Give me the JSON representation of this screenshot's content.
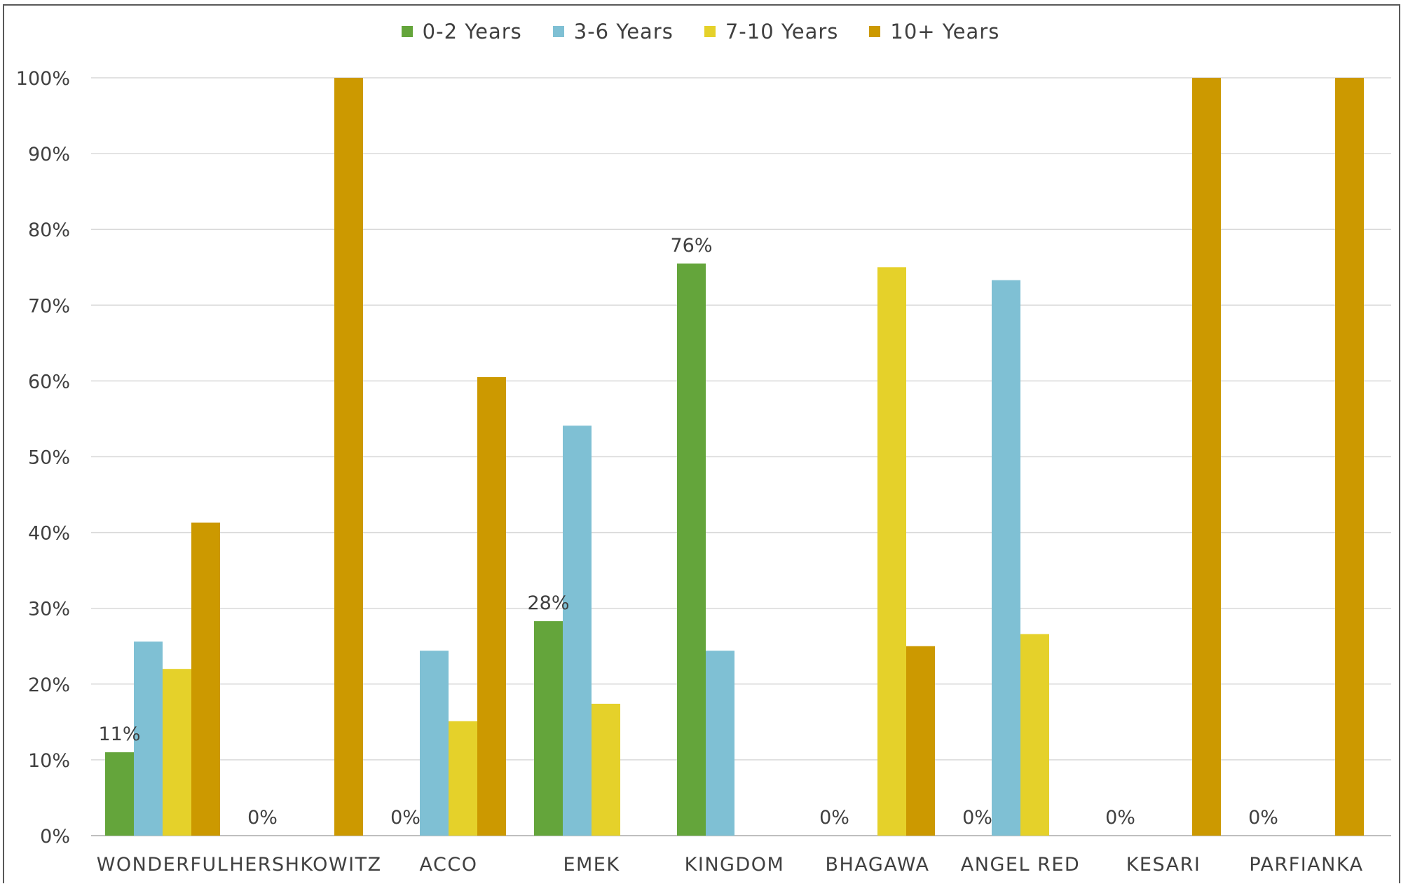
{
  "chart_data": {
    "type": "bar",
    "categories": [
      "WONDERFUL",
      "HERSHKOWITZ",
      "ACCO",
      "EMEK",
      "KINGDOM",
      "BHAGAWA",
      "ANGEL RED",
      "KESARI",
      "PARFIANKA"
    ],
    "series": [
      {
        "name": "0-2 Years",
        "color": "#64a53b",
        "values": [
          11,
          0,
          0,
          28.3,
          75.5,
          0,
          0,
          0,
          0
        ]
      },
      {
        "name": "3-6 Years",
        "color": "#7fc0d4",
        "values": [
          25.6,
          0,
          24.4,
          54.1,
          24.4,
          0,
          73.3,
          0,
          0
        ]
      },
      {
        "name": "7-10 Years",
        "color": "#e5d12a",
        "values": [
          22,
          0,
          15.1,
          17.4,
          0,
          75,
          26.6,
          0,
          0
        ]
      },
      {
        "name": "10+ Years",
        "color": "#cc9900",
        "values": [
          41.3,
          100,
          60.5,
          0,
          0,
          25,
          0,
          100,
          100
        ]
      }
    ],
    "data_labels": [
      "11%",
      "0%",
      "0%",
      "28%",
      "76%",
      "0%",
      "0%",
      "0%",
      "0%"
    ],
    "ylim": [
      0,
      100
    ],
    "yticks": [
      "0%",
      "10%",
      "20%",
      "30%",
      "40%",
      "50%",
      "60%",
      "70%",
      "80%",
      "90%",
      "100%"
    ],
    "grid": true,
    "legend_position": "top",
    "title": "",
    "xlabel": "",
    "ylabel": ""
  }
}
